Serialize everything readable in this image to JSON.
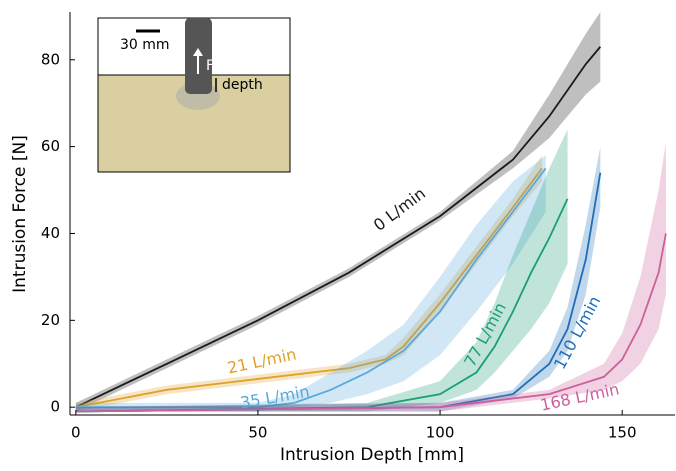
{
  "chart_data": {
    "type": "line",
    "x_label": "Intrusion Depth [mm]",
    "y_label": "Intrusion Force [N]",
    "xlim": [
      -1.6,
      164.5
    ],
    "ylim": [
      -1.8,
      91
    ],
    "xticks": [
      0,
      50,
      100,
      150
    ],
    "yticks": [
      0,
      20,
      40,
      60,
      80
    ],
    "series": [
      {
        "name": "0 L/min",
        "color": "#1a1a1a",
        "x": [
          0,
          25,
          50,
          75,
          100,
          120,
          130,
          140,
          144
        ],
        "values": [
          0,
          10,
          20,
          31,
          44,
          57,
          67,
          79,
          83
        ],
        "lower": [
          -1,
          9,
          19,
          30,
          43,
          55,
          62,
          72,
          75
        ],
        "upper": [
          1,
          11,
          21,
          32,
          45,
          59,
          72,
          86,
          91
        ]
      },
      {
        "name": "21 L/min",
        "color": "#e0a12a",
        "x": [
          0,
          25,
          50,
          75,
          85,
          90,
          100,
          110,
          120,
          128
        ],
        "values": [
          0,
          4,
          6.5,
          9,
          11,
          14,
          24,
          35,
          46,
          55
        ],
        "lower": [
          -1,
          3,
          5.5,
          8,
          10,
          12,
          22,
          33,
          44,
          52
        ],
        "upper": [
          1,
          5,
          7.5,
          10,
          12,
          16,
          26,
          37,
          48,
          58
        ]
      },
      {
        "name": "35 L/min",
        "color": "#5aa9db",
        "x": [
          0,
          50,
          60,
          70,
          80,
          90,
          100,
          110,
          120,
          129
        ],
        "values": [
          0,
          0,
          1,
          4,
          8,
          13,
          22,
          34,
          45,
          55
        ],
        "lower": [
          -1,
          -1,
          0,
          1,
          3,
          6,
          12,
          22,
          33,
          45
        ],
        "upper": [
          1,
          1,
          3,
          8,
          13,
          19,
          30,
          42,
          52,
          58
        ]
      },
      {
        "name": "77 L/min",
        "color": "#1b9e77",
        "x": [
          0,
          80,
          100,
          110,
          115,
          120,
          125,
          130,
          135
        ],
        "values": [
          -1,
          0,
          3,
          8,
          14,
          22,
          31,
          39,
          48
        ],
        "lower": [
          -1,
          -1,
          1,
          4,
          8,
          13,
          18,
          24,
          33
        ],
        "upper": [
          0,
          1,
          6,
          15,
          24,
          35,
          45,
          55,
          64
        ]
      },
      {
        "name": "110 L/min",
        "color": "#1f6fb8",
        "x": [
          0,
          100,
          120,
          130,
          135,
          140,
          144
        ],
        "values": [
          -1,
          0,
          3,
          10,
          18,
          34,
          54
        ],
        "lower": [
          -1,
          -1,
          2,
          7,
          13,
          26,
          46
        ],
        "upper": [
          0,
          1,
          4,
          13,
          23,
          42,
          60
        ]
      },
      {
        "name": "168 L/min",
        "color": "#cc5f9c",
        "x": [
          0,
          100,
          130,
          145,
          150,
          155,
          160,
          162
        ],
        "values": [
          -1,
          0,
          3,
          7,
          11,
          19,
          31,
          40
        ],
        "lower": [
          -1,
          -1,
          2,
          4,
          6,
          10,
          18,
          26
        ],
        "upper": [
          0,
          1,
          4,
          10,
          17,
          30,
          50,
          61
        ]
      }
    ],
    "inset": {
      "scale_label": "30 mm",
      "force_label": "F",
      "depth_label": "depth"
    }
  }
}
